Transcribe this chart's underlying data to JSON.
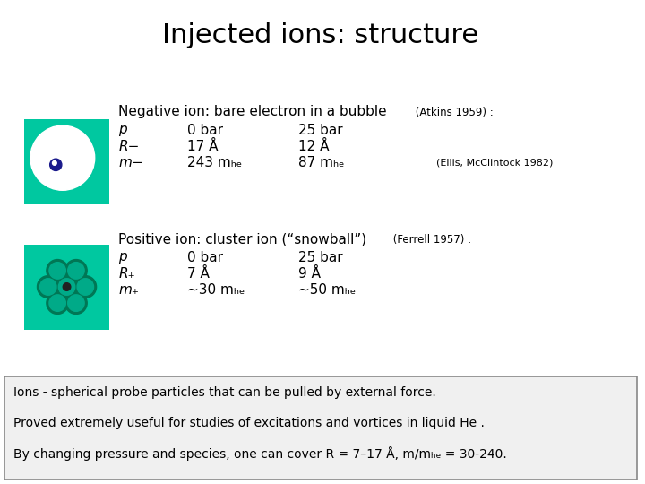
{
  "title": "Injected ions: structure",
  "title_fontsize": 22,
  "background_color": "#ffffff",
  "teal_color": "#00C8A0",
  "neg_ion_title": "Negative ion: bare electron in a bubble",
  "neg_ion_ref": " (Atkins 1959) :",
  "neg_rows": [
    [
      "p",
      "0 bar",
      "25 bar",
      ""
    ],
    [
      "R−",
      "17 Å",
      "12 Å",
      ""
    ],
    [
      "m−",
      "243 mₕₑ",
      "87 mₕₑ",
      "(Ellis, McClintock 1982)"
    ]
  ],
  "pos_ion_title": "Positive ion: cluster ion (“snowball”)",
  "pos_ion_ref": " (Ferrell 1957) :",
  "pos_rows": [
    [
      "p",
      "0 bar",
      "25 bar",
      ""
    ],
    [
      "R₊",
      "7 Å",
      "9 Å",
      ""
    ],
    [
      "m₊",
      "~30 mₕₑ",
      "~50 mₕₑ",
      ""
    ]
  ],
  "bottom_lines": [
    "Ions - spherical probe particles that can be pulled by external force.",
    "Proved extremely useful for studies of excitations and vortices in liquid He .",
    "By changing pressure and species, one can cover R = 7–17 Å, m/mₕₑ = 30-240."
  ],
  "bottom_box_color": "#f0f0f0",
  "bottom_border_color": "#888888"
}
